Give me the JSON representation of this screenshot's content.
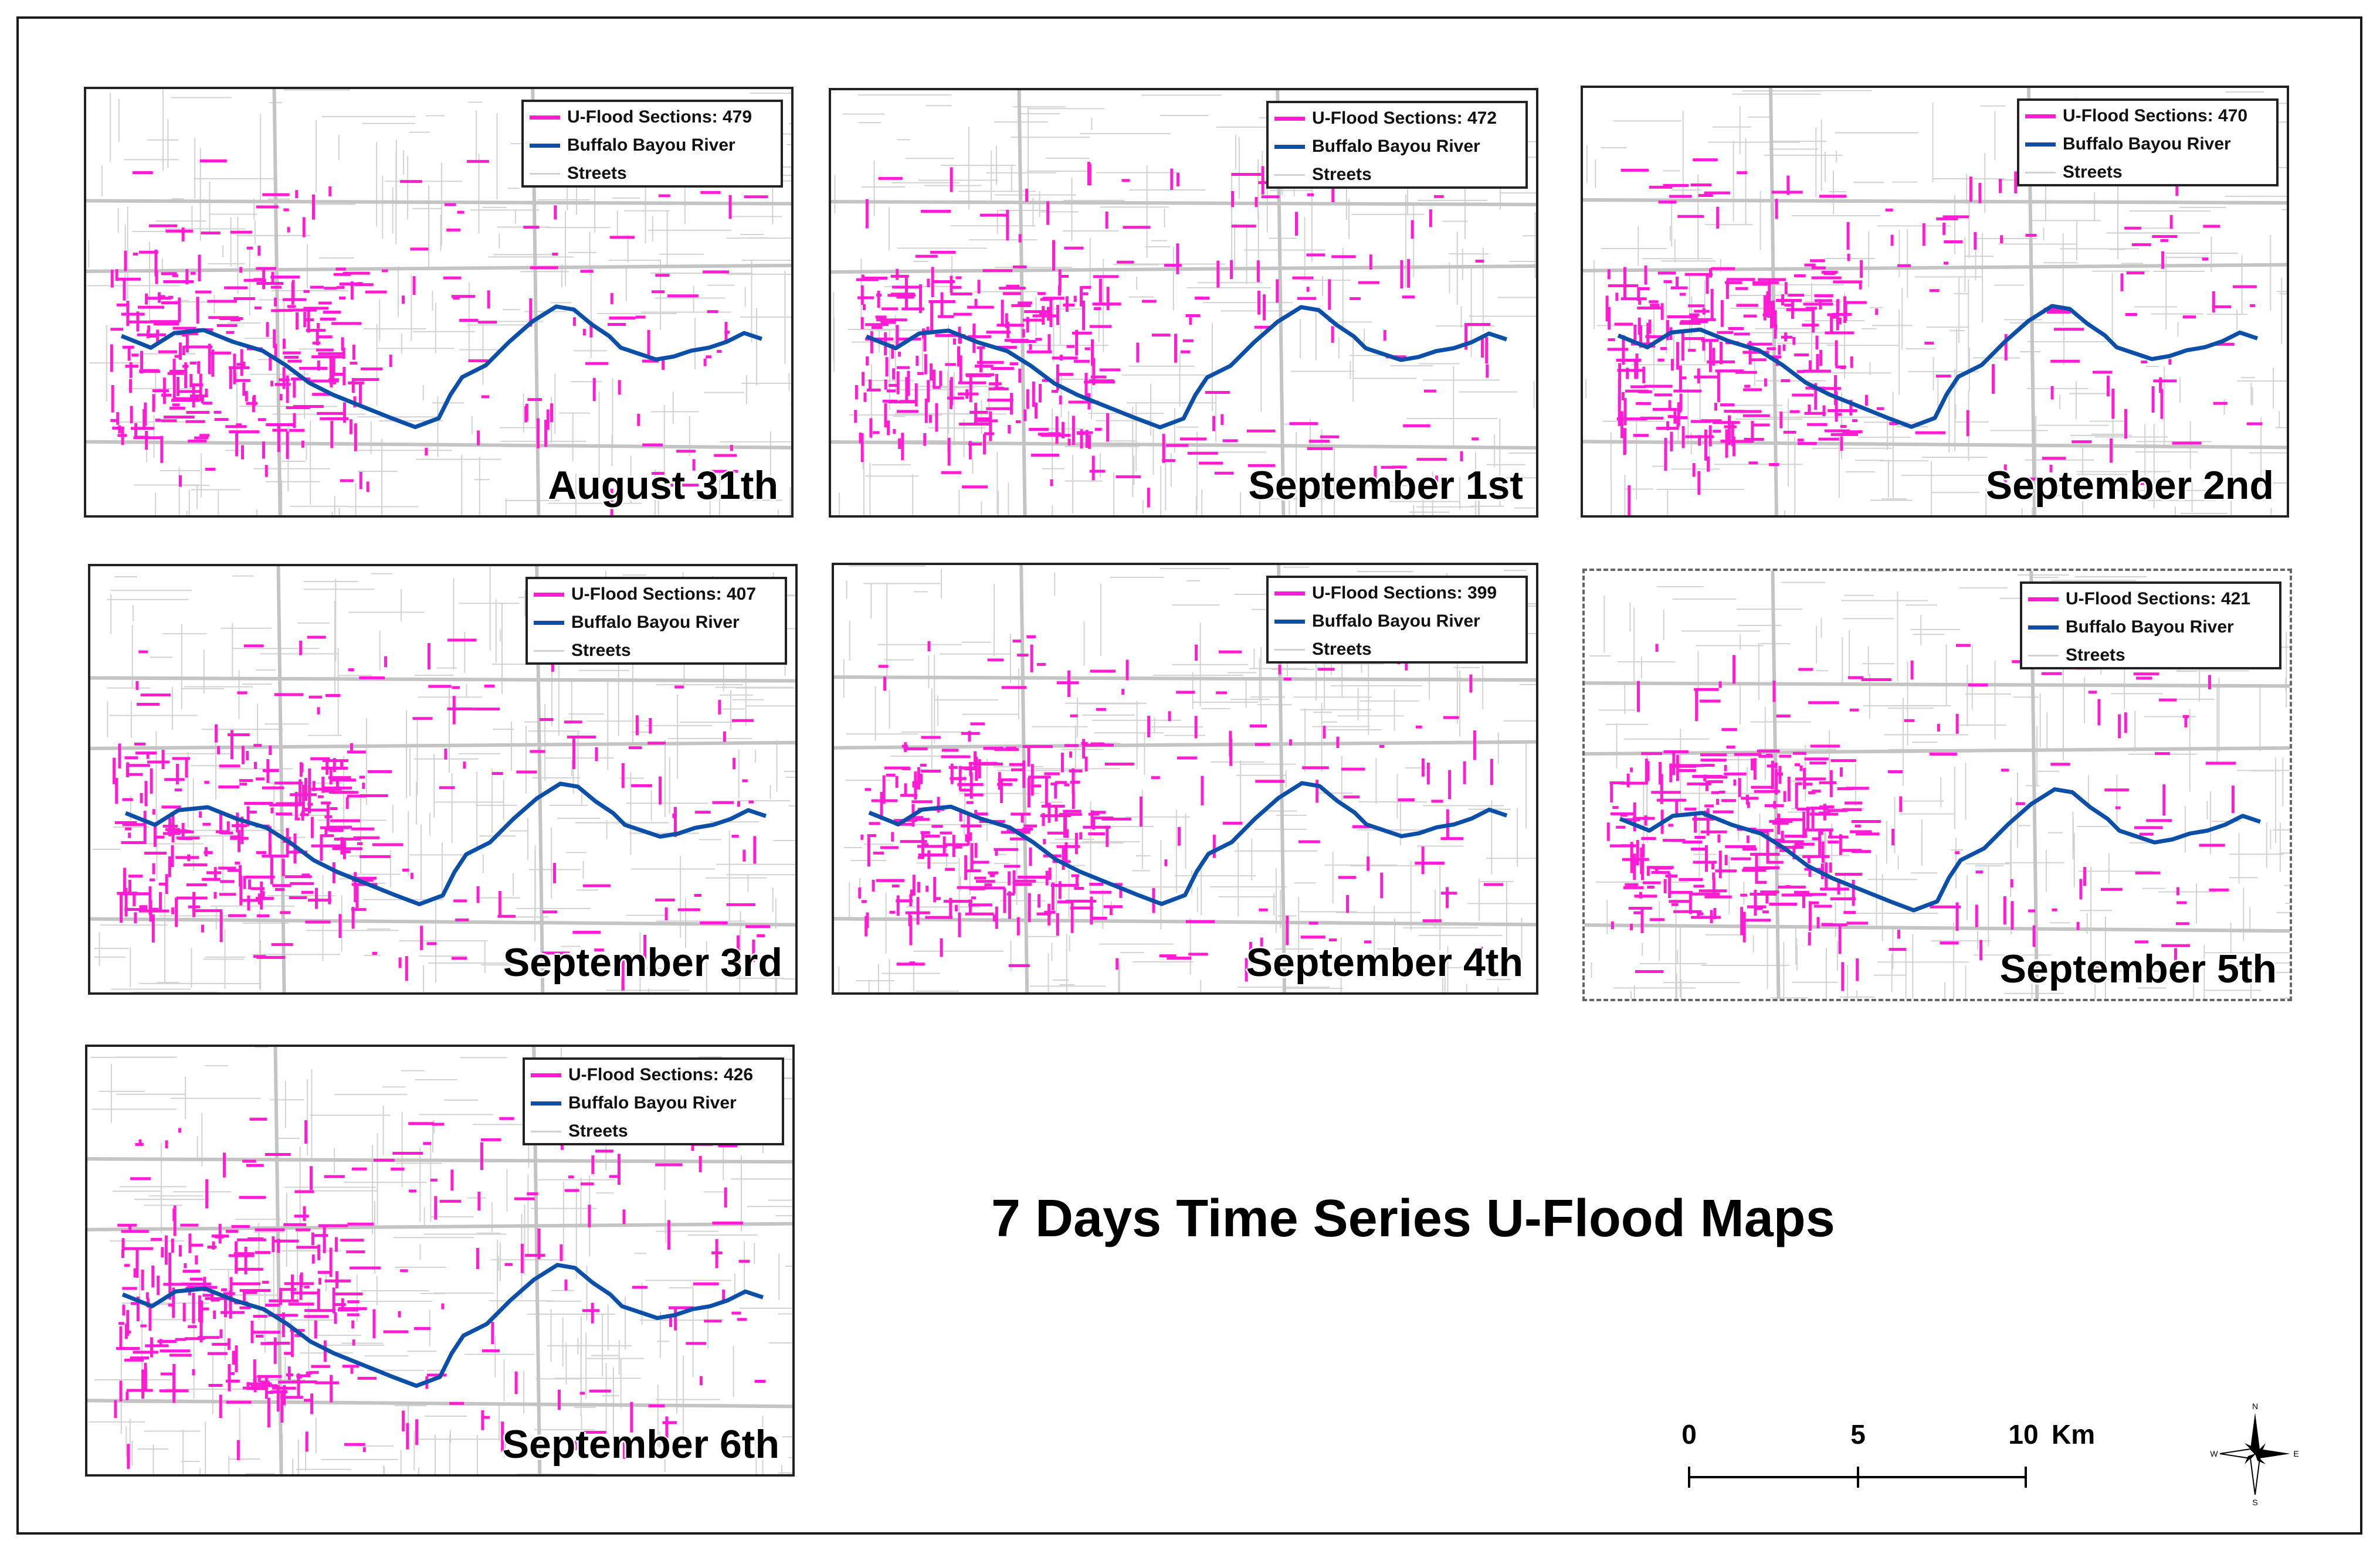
{
  "title": "7 Days Time Series U-Flood Maps",
  "legend_labels": {
    "flood_prefix": "U-Flood Sections: ",
    "river": "Buffalo Bayou River",
    "streets": "Streets"
  },
  "colors": {
    "flood": "#ff1cd2",
    "river": "#0b4fa8",
    "streets": "#d2d2d2",
    "frame": "#1a1a1a"
  },
  "maps": [
    {
      "date": "August 31th",
      "flood_sections": "479",
      "flood_text": "U-Flood Sections: 479"
    },
    {
      "date": "September 1st",
      "flood_sections": "472",
      "flood_text": "U-Flood Sections: 472"
    },
    {
      "date": "September 2nd",
      "flood_sections": "470",
      "flood_text": "U-Flood Sections: 470"
    },
    {
      "date": "September 3rd",
      "flood_sections": "407",
      "flood_text": "U-Flood Sections: 407"
    },
    {
      "date": "September 4th",
      "flood_sections": "399",
      "flood_text": "U-Flood Sections: 399"
    },
    {
      "date": "September 5th",
      "flood_sections": "421",
      "flood_text": "U-Flood Sections: 421"
    },
    {
      "date": "September 6th",
      "flood_sections": "426",
      "flood_text": "U-Flood Sections: 426"
    }
  ],
  "scale_bar": {
    "ticks": [
      "0",
      "5",
      "10"
    ],
    "unit": "Km"
  },
  "north_arrow": {
    "n": "N",
    "s": "S",
    "e": "E",
    "w": "W"
  }
}
